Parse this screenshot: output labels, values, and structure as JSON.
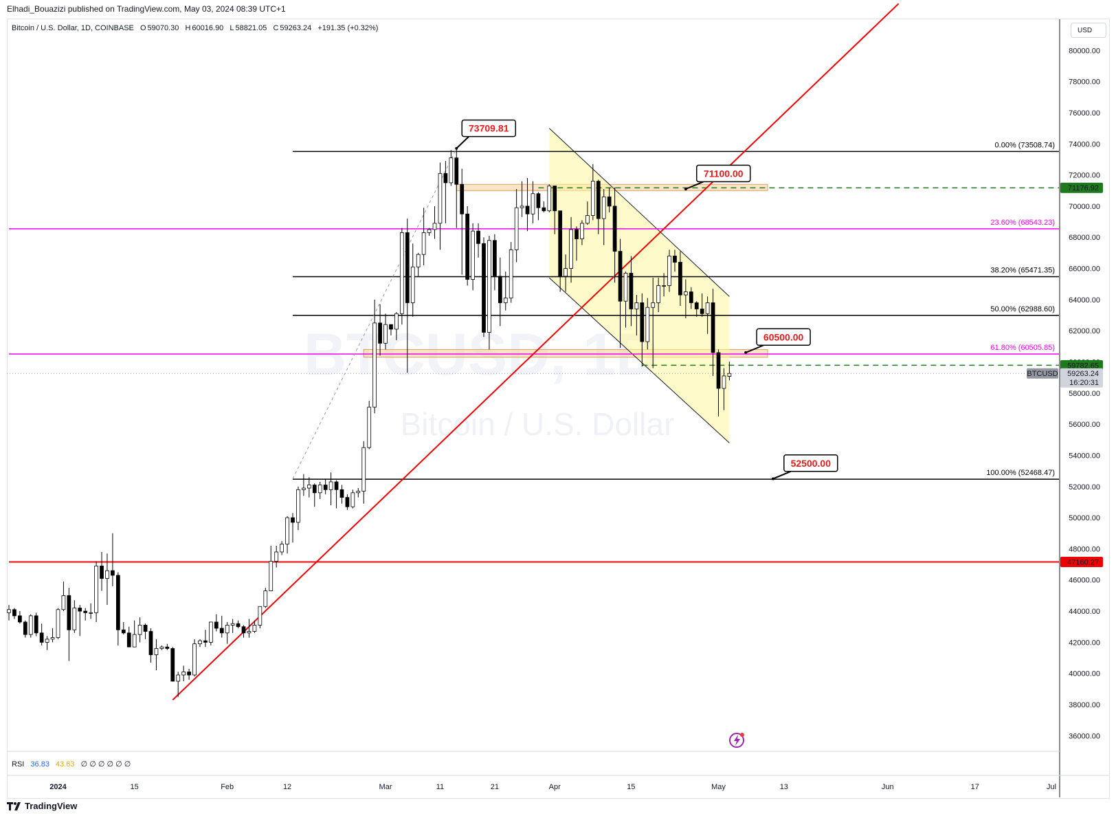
{
  "header": {
    "publisher_line": "Elhadi_Bouazizi published on TradingView.com, May 03, 2024 08:39 UTC+1"
  },
  "legend": {
    "symbol": "Bitcoin / U.S. Dollar, 1D, COINBASE",
    "o_label": "O",
    "o_value": "59070.30",
    "h_label": "H",
    "h_value": "60016.90",
    "l_label": "L",
    "l_value": "58821.05",
    "c_label": "C",
    "c_value": "59263.24",
    "change": "+191.35 (+0.32%)"
  },
  "currency_button": "USD",
  "watermark": {
    "ticker": "BTCUSD, 1D",
    "name": "Bitcoin / U.S. Dollar"
  },
  "rsi": {
    "label": "RSI",
    "value1": "36.83",
    "value2": "43.63",
    "empty_symbol": "∅",
    "empty_count": 6
  },
  "footer": {
    "brand": "TradingView"
  },
  "colors": {
    "up_fill": "#ffffff",
    "down_fill": "#000000",
    "red": "#f00000",
    "magenta": "#f000f0",
    "green": "#1f7a1f",
    "channel": "#fff59d",
    "zone": "#f5c58a"
  },
  "chart_data": {
    "type": "candlestick",
    "interval": "1D",
    "ylim": [
      35000,
      82000
    ],
    "y_ticks": [
      36000,
      38000,
      40000,
      42000,
      44000,
      46000,
      48000,
      50000,
      52000,
      54000,
      56000,
      58000,
      60000,
      62000,
      64000,
      66000,
      68000,
      70000,
      72000,
      74000,
      76000,
      78000,
      80000
    ],
    "y_tick_labels": [
      "36000.00",
      "38000.00",
      "40000.00",
      "42000.00",
      "44000.00",
      "46000.00",
      "48000.00",
      "50000.00",
      "52000.00",
      "54000.00",
      "56000.00",
      "58000.00",
      "60000.00",
      "62000.00",
      "64000.00",
      "66000.00",
      "68000.00",
      "70000.00",
      "72000.00",
      "74000.00",
      "76000.00",
      "78000.00",
      "80000.00"
    ],
    "x_ticks": [
      {
        "date": "2024-01-01",
        "label": "2024"
      },
      {
        "date": "2024-01-15",
        "label": "15"
      },
      {
        "date": "2024-02-01",
        "label": "Feb"
      },
      {
        "date": "2024-02-12",
        "label": "12"
      },
      {
        "date": "2024-03-01",
        "label": "Mar"
      },
      {
        "date": "2024-03-11",
        "label": "11"
      },
      {
        "date": "2024-03-21",
        "label": "21"
      },
      {
        "date": "2024-04-01",
        "label": "Apr"
      },
      {
        "date": "2024-04-15",
        "label": "15"
      },
      {
        "date": "2024-05-01",
        "label": "May"
      },
      {
        "date": "2024-05-13",
        "label": "13"
      },
      {
        "date": "2024-06-01",
        "label": "Jun"
      },
      {
        "date": "2024-06-17",
        "label": "17"
      },
      {
        "date": "2024-07-01",
        "label": "Jul"
      }
    ],
    "x_range": [
      "2023-12-23",
      "2024-07-01"
    ],
    "candles": [
      [
        "2023-12-23",
        43900,
        44400,
        43400,
        44100
      ],
      [
        "2023-12-24",
        44100,
        44200,
        43500,
        43700
      ],
      [
        "2023-12-25",
        43700,
        44000,
        43200,
        43300
      ],
      [
        "2023-12-26",
        43300,
        43400,
        42300,
        42500
      ],
      [
        "2023-12-27",
        42500,
        43800,
        42300,
        43700
      ],
      [
        "2023-12-28",
        43700,
        43900,
        42400,
        42600
      ],
      [
        "2023-12-29",
        42600,
        43200,
        41800,
        42000
      ],
      [
        "2023-12-30",
        42000,
        42400,
        41500,
        42200
      ],
      [
        "2023-12-31",
        42200,
        42900,
        42000,
        42300
      ],
      [
        "2024-01-01",
        42300,
        44200,
        42200,
        44100
      ],
      [
        "2024-01-02",
        44100,
        45900,
        44000,
        45000
      ],
      [
        "2024-01-03",
        45000,
        45500,
        40800,
        42800
      ],
      [
        "2024-01-04",
        42800,
        44700,
        42600,
        44200
      ],
      [
        "2024-01-05",
        44200,
        44400,
        42400,
        44000
      ],
      [
        "2024-01-06",
        44000,
        44200,
        43400,
        43900
      ],
      [
        "2024-01-07",
        43900,
        44500,
        43500,
        43900
      ],
      [
        "2024-01-08",
        43900,
        47200,
        43300,
        46900
      ],
      [
        "2024-01-09",
        46900,
        47800,
        45300,
        46100
      ],
      [
        "2024-01-10",
        46100,
        47700,
        44400,
        46600
      ],
      [
        "2024-01-11",
        46600,
        49000,
        45600,
        46300
      ],
      [
        "2024-01-12",
        46300,
        46500,
        41800,
        42800
      ],
      [
        "2024-01-13",
        42800,
        43300,
        42500,
        42600
      ],
      [
        "2024-01-14",
        42600,
        43000,
        41700,
        41700
      ],
      [
        "2024-01-15",
        41700,
        43400,
        41700,
        42500
      ],
      [
        "2024-01-16",
        42500,
        43600,
        42000,
        43100
      ],
      [
        "2024-01-17",
        43100,
        43200,
        42200,
        42700
      ],
      [
        "2024-01-18",
        42700,
        42900,
        40700,
        41200
      ],
      [
        "2024-01-19",
        41200,
        42200,
        40200,
        41600
      ],
      [
        "2024-01-20",
        41600,
        41800,
        41500,
        41700
      ],
      [
        "2024-01-21",
        41700,
        41900,
        41500,
        41600
      ],
      [
        "2024-01-22",
        41600,
        41700,
        39500,
        39500
      ],
      [
        "2024-01-23",
        39500,
        40100,
        38500,
        39900
      ],
      [
        "2024-01-24",
        39900,
        40500,
        39500,
        40100
      ],
      [
        "2024-01-25",
        40100,
        40300,
        39600,
        39900
      ],
      [
        "2024-01-26",
        39900,
        42200,
        39800,
        41900
      ],
      [
        "2024-01-27",
        41900,
        42200,
        41700,
        42100
      ],
      [
        "2024-01-28",
        42100,
        42800,
        41700,
        42000
      ],
      [
        "2024-01-29",
        42000,
        43300,
        41800,
        43300
      ],
      [
        "2024-01-30",
        43300,
        43800,
        42700,
        42900
      ],
      [
        "2024-01-31",
        42900,
        43700,
        42300,
        42600
      ],
      [
        "2024-02-01",
        42600,
        43300,
        41900,
        43100
      ],
      [
        "2024-02-02",
        43100,
        43500,
        42600,
        43200
      ],
      [
        "2024-02-03",
        43200,
        43400,
        42900,
        43000
      ],
      [
        "2024-02-04",
        43000,
        43100,
        42300,
        42600
      ],
      [
        "2024-02-05",
        42600,
        43500,
        42300,
        42700
      ],
      [
        "2024-02-06",
        42700,
        43400,
        42600,
        43100
      ],
      [
        "2024-02-07",
        43100,
        44300,
        42900,
        44300
      ],
      [
        "2024-02-08",
        44300,
        45500,
        44200,
        45300
      ],
      [
        "2024-02-09",
        45300,
        48200,
        45300,
        47200
      ],
      [
        "2024-02-10",
        47200,
        48200,
        46800,
        47800
      ],
      [
        "2024-02-11",
        47800,
        48500,
        47600,
        48300
      ],
      [
        "2024-02-12",
        48300,
        50100,
        47700,
        50000
      ],
      [
        "2024-02-13",
        50000,
        50300,
        48400,
        49700
      ],
      [
        "2024-02-14",
        49700,
        52000,
        49200,
        51800
      ],
      [
        "2024-02-15",
        51800,
        52800,
        51400,
        51900
      ],
      [
        "2024-02-16",
        51900,
        52600,
        51300,
        52100
      ],
      [
        "2024-02-17",
        52100,
        52200,
        50700,
        51600
      ],
      [
        "2024-02-18",
        51600,
        52300,
        51200,
        52100
      ],
      [
        "2024-02-19",
        52100,
        52500,
        51500,
        51800
      ],
      [
        "2024-02-20",
        51800,
        52900,
        50800,
        52300
      ],
      [
        "2024-02-21",
        52300,
        52400,
        50600,
        51800
      ],
      [
        "2024-02-22",
        51800,
        52100,
        50900,
        51300
      ],
      [
        "2024-02-23",
        51300,
        51500,
        50500,
        50700
      ],
      [
        "2024-02-24",
        50700,
        51800,
        50600,
        51600
      ],
      [
        "2024-02-25",
        51600,
        51900,
        51300,
        51700
      ],
      [
        "2024-02-26",
        51700,
        54900,
        50900,
        54500
      ],
      [
        "2024-02-27",
        54500,
        57500,
        54400,
        57100
      ],
      [
        "2024-02-28",
        57100,
        64000,
        56700,
        62500
      ],
      [
        "2024-02-29",
        62500,
        63700,
        60400,
        61200
      ],
      [
        "2024-03-01",
        61200,
        63100,
        60800,
        62400
      ],
      [
        "2024-03-02",
        62400,
        62400,
        61700,
        62100
      ],
      [
        "2024-03-03",
        62100,
        63200,
        61400,
        63100
      ],
      [
        "2024-03-04",
        63100,
        68600,
        62400,
        68300
      ],
      [
        "2024-03-05",
        68300,
        69200,
        59300,
        63800
      ],
      [
        "2024-03-06",
        63800,
        67600,
        62900,
        66100
      ],
      [
        "2024-03-07",
        66100,
        67000,
        65500,
        66900
      ],
      [
        "2024-03-08",
        66900,
        69900,
        66200,
        68300
      ],
      [
        "2024-03-09",
        68300,
        68600,
        68100,
        68500
      ],
      [
        "2024-03-10",
        68500,
        70000,
        67900,
        68900
      ],
      [
        "2024-03-11",
        68900,
        72800,
        67200,
        72100
      ],
      [
        "2024-03-12",
        72100,
        72900,
        68900,
        71500
      ],
      [
        "2024-03-13",
        71500,
        73600,
        71300,
        73100
      ],
      [
        "2024-03-14",
        73100,
        73700,
        68600,
        71400
      ],
      [
        "2024-03-15",
        71400,
        72400,
        65600,
        69500
      ],
      [
        "2024-03-16",
        69500,
        70000,
        64900,
        65300
      ],
      [
        "2024-03-17",
        65300,
        68900,
        64600,
        68400
      ],
      [
        "2024-03-18",
        68400,
        68900,
        66700,
        67600
      ],
      [
        "2024-03-19",
        67600,
        68000,
        61600,
        61900
      ],
      [
        "2024-03-20",
        61900,
        68100,
        60800,
        67800
      ],
      [
        "2024-03-21",
        67800,
        68200,
        64600,
        65500
      ],
      [
        "2024-03-22",
        65500,
        66700,
        62300,
        63800
      ],
      [
        "2024-03-23",
        63800,
        65800,
        63300,
        64100
      ],
      [
        "2024-03-24",
        64100,
        67700,
        63800,
        67200
      ],
      [
        "2024-03-25",
        67200,
        71100,
        66400,
        69900
      ],
      [
        "2024-03-26",
        69900,
        71600,
        69300,
        70000
      ],
      [
        "2024-03-27",
        70000,
        71800,
        68400,
        69500
      ],
      [
        "2024-03-28",
        69500,
        71600,
        68900,
        70800
      ],
      [
        "2024-03-29",
        70800,
        70900,
        69100,
        69900
      ],
      [
        "2024-03-30",
        69900,
        70300,
        69600,
        69700
      ],
      [
        "2024-03-31",
        69700,
        71400,
        69600,
        71300
      ],
      [
        "2024-04-01",
        71300,
        71300,
        68200,
        69700
      ],
      [
        "2024-04-02",
        69700,
        69700,
        64500,
        65500
      ],
      [
        "2024-04-03",
        65500,
        66900,
        64500,
        66000
      ],
      [
        "2024-04-04",
        66000,
        69300,
        65100,
        68500
      ],
      [
        "2024-04-05",
        68500,
        68700,
        66500,
        67900
      ],
      [
        "2024-04-06",
        67900,
        69100,
        67500,
        68900
      ],
      [
        "2024-04-07",
        68900,
        70300,
        68800,
        69400
      ],
      [
        "2024-04-08",
        69400,
        72700,
        69100,
        71600
      ],
      [
        "2024-04-09",
        71600,
        71700,
        68200,
        69200
      ],
      [
        "2024-04-10",
        69200,
        71100,
        67500,
        70600
      ],
      [
        "2024-04-11",
        70600,
        71200,
        69600,
        70000
      ],
      [
        "2024-04-12",
        70000,
        71200,
        65100,
        67100
      ],
      [
        "2024-04-13",
        67100,
        67900,
        60900,
        63900
      ],
      [
        "2024-04-14",
        63900,
        65800,
        62200,
        65700
      ],
      [
        "2024-04-15",
        65700,
        66800,
        62300,
        63400
      ],
      [
        "2024-04-16",
        63400,
        64300,
        61700,
        63800
      ],
      [
        "2024-04-17",
        63800,
        64400,
        59700,
        61300
      ],
      [
        "2024-04-18",
        61300,
        64100,
        60800,
        63500
      ],
      [
        "2024-04-19",
        63500,
        65400,
        59600,
        63800
      ],
      [
        "2024-04-20",
        63800,
        65400,
        63200,
        64900
      ],
      [
        "2024-04-21",
        64900,
        65700,
        64200,
        64900
      ],
      [
        "2024-04-22",
        64900,
        67200,
        64500,
        66800
      ],
      [
        "2024-04-23",
        66800,
        67200,
        65800,
        66400
      ],
      [
        "2024-04-24",
        66400,
        67100,
        63600,
        64300
      ],
      [
        "2024-04-25",
        64300,
        65300,
        62800,
        64500
      ],
      [
        "2024-04-26",
        64500,
        64800,
        63400,
        63800
      ],
      [
        "2024-04-27",
        63800,
        63900,
        62900,
        63400
      ],
      [
        "2024-04-28",
        63400,
        64400,
        62900,
        63100
      ],
      [
        "2024-04-29",
        63100,
        64200,
        61800,
        63800
      ],
      [
        "2024-04-30",
        63800,
        64700,
        59100,
        60600
      ],
      [
        "2024-05-01",
        60600,
        60800,
        56500,
        58300
      ],
      [
        "2024-05-02",
        58300,
        59600,
        56900,
        59100
      ],
      [
        "2024-05-03",
        59070.3,
        60016.9,
        58821.05,
        59263.24
      ]
    ],
    "horizontal_levels": [
      {
        "name": "fib-0",
        "value": 73508.74,
        "label": "0.00% (73508.74)",
        "color": "#000000",
        "style": "solid",
        "start": "2024-02-13"
      },
      {
        "name": "fib-23.6",
        "value": 68543.23,
        "label": "23.60% (68543.23)",
        "color": "#f000f0",
        "style": "solid",
        "start": "2023-12-23"
      },
      {
        "name": "fib-38.2",
        "value": 65471.35,
        "label": "38.20% (65471.35)",
        "color": "#000000",
        "style": "solid",
        "start": "2024-02-13"
      },
      {
        "name": "fib-50",
        "value": 62988.6,
        "label": "50.00% (62988.60)",
        "color": "#000000",
        "style": "solid",
        "start": "2024-02-13"
      },
      {
        "name": "fib-61.8",
        "value": 60505.85,
        "label": "61.80% (60505.85)",
        "color": "#f000f0",
        "style": "solid",
        "start": "2023-12-23"
      },
      {
        "name": "fib-100",
        "value": 52468.47,
        "label": "100.00% (52468.47)",
        "color": "#000000",
        "style": "solid",
        "start": "2024-02-13"
      },
      {
        "name": "support-red",
        "value": 47160.27,
        "label": "",
        "color": "#f00000",
        "style": "solid",
        "start": "2023-12-23"
      },
      {
        "name": "green-top",
        "value": 71176.92,
        "label": "",
        "color": "#1f7a1f",
        "style": "dashed",
        "start": "2024-03-29"
      },
      {
        "name": "green-bottom",
        "value": 59782.65,
        "label": "",
        "color": "#1f7a1f",
        "style": "dashed",
        "start": "2024-04-17"
      }
    ],
    "price_labels": [
      {
        "value": 71176.92,
        "text": "71176.92",
        "bg": "#1f7a1f",
        "fg": "#ffffff"
      },
      {
        "value": 59782.65,
        "text": "59782.65",
        "bg": "#1f7a1f",
        "fg": "#ffffff"
      },
      {
        "value": 59263.24,
        "text": "59263.24",
        "sub": "16:20:31",
        "bg": "#d1d4dc",
        "fg": "#131722",
        "tag": "BTCUSD"
      },
      {
        "value": 47160.27,
        "text": "47160.27",
        "bg": "#f00000",
        "fg": "#ffffff"
      }
    ],
    "zones": [
      {
        "name": "resistance-zone",
        "from": "2024-03-14",
        "to": "2024-05-10",
        "low": 71000,
        "high": 71400
      },
      {
        "name": "support-zone",
        "from": "2024-02-26",
        "to": "2024-05-10",
        "low": 60300,
        "high": 60800
      }
    ],
    "channel": {
      "top_start": [
        "2024-03-31",
        75000
      ],
      "top_end": [
        "2024-05-03",
        64200
      ],
      "bottom_end": [
        "2024-05-03",
        54800
      ],
      "bottom_start": [
        "2024-03-31",
        65400
      ]
    },
    "trendline": {
      "from": [
        "2024-01-22",
        38300
      ],
      "to": [
        "2024-06-03",
        83000
      ]
    },
    "dotted_line": {
      "from": [
        "2024-02-13",
        52500
      ],
      "to": [
        "2024-03-14",
        73700
      ]
    },
    "callouts": [
      {
        "text": "73709.81",
        "anchor": [
          "2024-03-14",
          73709.81
        ],
        "box_date": "2024-03-15",
        "box_value": 75000
      },
      {
        "text": "71100.00",
        "anchor": [
          "2024-04-25",
          71100
        ],
        "box_date": "2024-04-27",
        "box_value": 72100
      },
      {
        "text": "60500.00",
        "anchor": [
          "2024-05-06",
          60600
        ],
        "box_date": "2024-05-08",
        "box_value": 61600
      },
      {
        "text": "52500.00",
        "anchor": [
          "2024-05-11",
          52500
        ],
        "box_date": "2024-05-13",
        "box_value": 53500
      }
    ]
  }
}
